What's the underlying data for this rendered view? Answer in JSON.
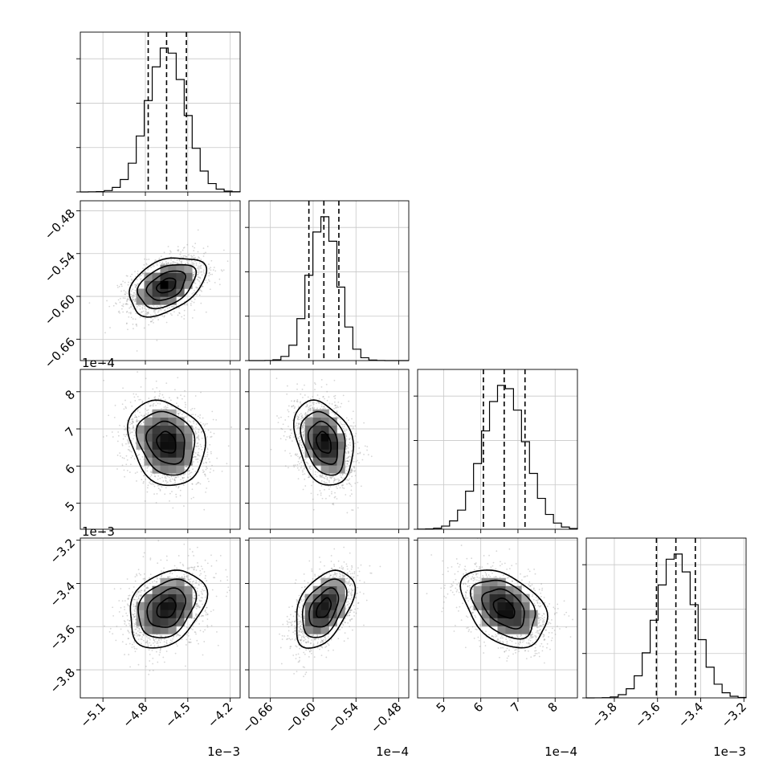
{
  "chart_data": {
    "type": "corner",
    "params": [
      {
        "key": "p0",
        "range": [
          -5.26,
          -4.13
        ],
        "ticks": [
          -5.1,
          -4.8,
          -4.5,
          -4.2
        ],
        "tick_labels": [
          "−5.1",
          "−4.8",
          "−4.5",
          "−4.2"
        ],
        "offset_label": "1e−3",
        "mean": -4.65,
        "sd": 0.135,
        "quantiles": [
          -4.78,
          -4.65,
          -4.51
        ]
      },
      {
        "key": "p1",
        "range": [
          -0.69,
          -0.466
        ],
        "ticks": [
          -0.66,
          -0.6,
          -0.54,
          -0.48
        ],
        "tick_labels": [
          "−0.66",
          "−0.60",
          "−0.54",
          "−0.48"
        ],
        "offset_label": "1e−4",
        "mean": -0.585,
        "sd": 0.0205,
        "quantiles": [
          -0.606,
          -0.585,
          -0.564
        ]
      },
      {
        "key": "p2",
        "range": [
          4.3,
          8.6
        ],
        "ticks": [
          5,
          6,
          7,
          8
        ],
        "tick_labels": [
          "5",
          "6",
          "7",
          "8"
        ],
        "offset_label": "1e−4",
        "mean": 6.63,
        "sd": 0.57,
        "quantiles": [
          6.07,
          6.63,
          7.19
        ]
      },
      {
        "key": "p3",
        "range": [
          -3.93,
          -3.19
        ],
        "ticks": [
          -3.8,
          -3.6,
          -3.4,
          -3.2
        ],
        "tick_labels": [
          "−3.8",
          "−3.6",
          "−3.4",
          "−3.2"
        ],
        "offset_label": "1e−3",
        "mean": -3.515,
        "sd": 0.09,
        "quantiles": [
          -3.605,
          -3.515,
          -3.425
        ]
      }
    ],
    "correlations": [
      [
        1.0,
        0.4,
        -0.2,
        0.3
      ],
      [
        0.4,
        1.0,
        -0.3,
        0.45
      ],
      [
        -0.2,
        -0.3,
        1.0,
        -0.4
      ],
      [
        0.3,
        0.45,
        -0.4,
        1.0
      ]
    ],
    "histogram_bins": 20,
    "contour_levels_sigma": [
      0.5,
      1.0,
      1.5,
      2.0
    ],
    "grid": true,
    "quantile_line_style": "dashed"
  }
}
